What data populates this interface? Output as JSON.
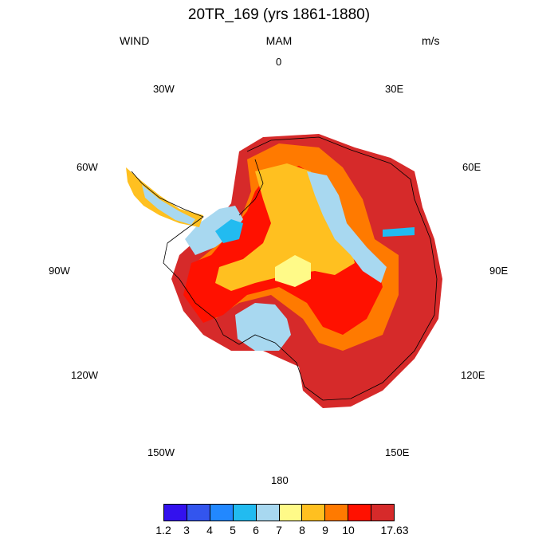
{
  "title": "20TR_169 (yrs 1861-1880)",
  "subtitle": {
    "left": "WIND",
    "center": "MAM",
    "right": "m/s"
  },
  "longitude_labels": {
    "top": "0",
    "tr1": "30E",
    "tr2": "60E",
    "right": "90E",
    "br2": "120E",
    "br1": "150E",
    "bottom": "180",
    "bl1": "150W",
    "bl2": "120W",
    "left": "90W",
    "tl2": "60W",
    "tl1": "30W"
  },
  "colorbar": {
    "colors": [
      "#3311ee",
      "#3355ee",
      "#2288ff",
      "#22bbf0",
      "#a8d8f0",
      "#fffa88",
      "#ffc020",
      "#ff7a00",
      "#ff1100",
      "#d62a2a"
    ],
    "labels": [
      "1.2",
      "3",
      "4",
      "5",
      "6",
      "7",
      "8",
      "9",
      "10",
      "17.63"
    ]
  }
}
